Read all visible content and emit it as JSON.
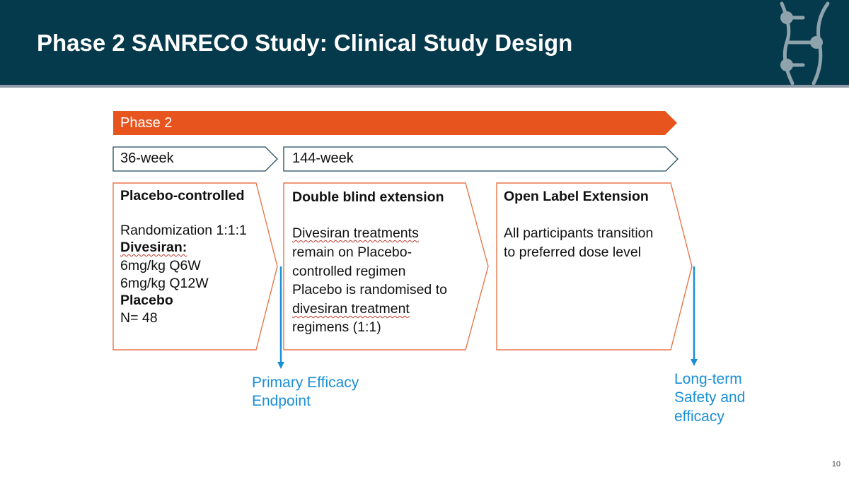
{
  "slide": {
    "title": "Phase 2 SANRECO Study: Clinical Study Design",
    "page_number": "10"
  },
  "phase_bar": {
    "label": "Phase 2",
    "color": "#e8541e"
  },
  "periods": [
    {
      "label": "36-week"
    },
    {
      "label": "144-week"
    }
  ],
  "boxes": [
    {
      "title": "Placebo-controlled",
      "lines": [
        "Randomization 1:1:1",
        "Divesiran:",
        "6mg/kg Q6W",
        "6mg/kg Q12W",
        "Placebo",
        "N= 48"
      ]
    },
    {
      "title": "Double blind extension",
      "lines": [
        "Divesiran treatments",
        "remain on Placebo-",
        "controlled regimen",
        "Placebo is randomised to",
        "divesiran treatment",
        "regimens (1:1)"
      ]
    },
    {
      "title": "Open Label Extension",
      "lines": [
        "All participants transition",
        "to preferred dose level"
      ]
    }
  ],
  "endpoints": [
    {
      "lines": [
        "Primary Efficacy",
        "Endpoint"
      ]
    },
    {
      "lines": [
        "Long-term",
        "Safety and",
        "efficacy"
      ]
    }
  ],
  "colors": {
    "header": "#053a4c",
    "accent_orange": "#e8541e",
    "box_border": "#e8764a",
    "endpoint_blue": "#1a8fd6",
    "period_border": "#1f4b5e"
  }
}
